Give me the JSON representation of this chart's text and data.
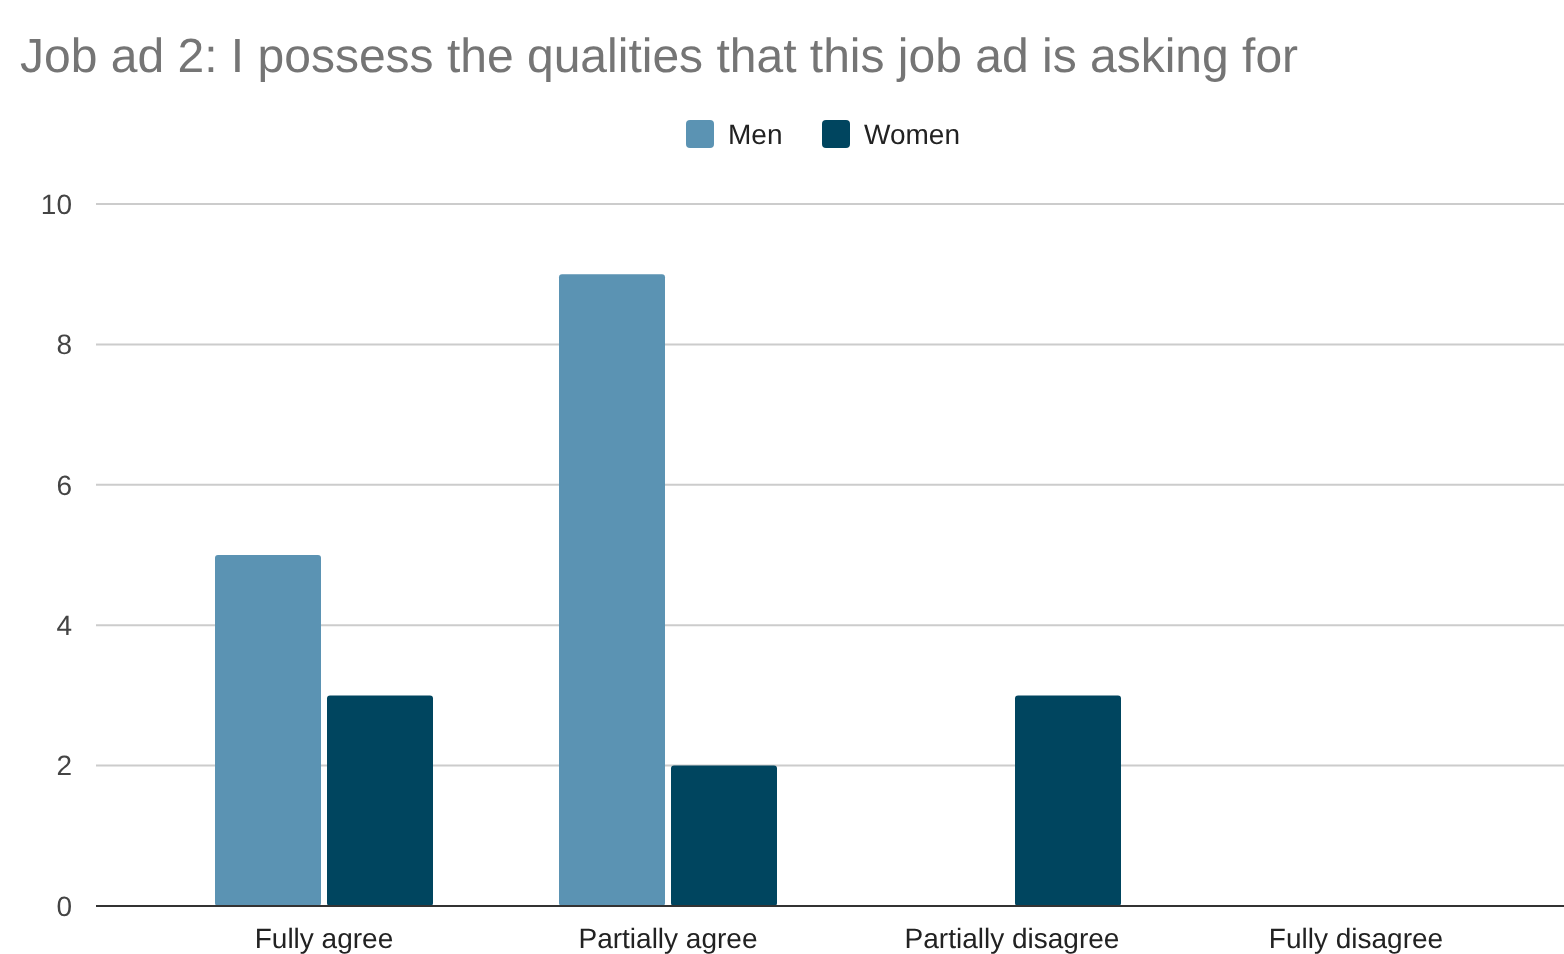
{
  "chart_data": {
    "type": "bar",
    "title": "Job ad 2: I possess the qualities that this job ad is asking for",
    "categories": [
      "Fully agree",
      "Partially agree",
      "Partially disagree",
      "Fully disagree"
    ],
    "series": [
      {
        "name": "Men",
        "color": "#5b93b3",
        "values": [
          5,
          9,
          0,
          0
        ]
      },
      {
        "name": "Women",
        "color": "#00455f",
        "values": [
          3,
          2,
          3,
          0
        ]
      }
    ],
    "ylim": [
      0,
      10
    ],
    "yticks": [
      0,
      2,
      4,
      6,
      8,
      10
    ],
    "grid": "y",
    "legend": "top"
  }
}
